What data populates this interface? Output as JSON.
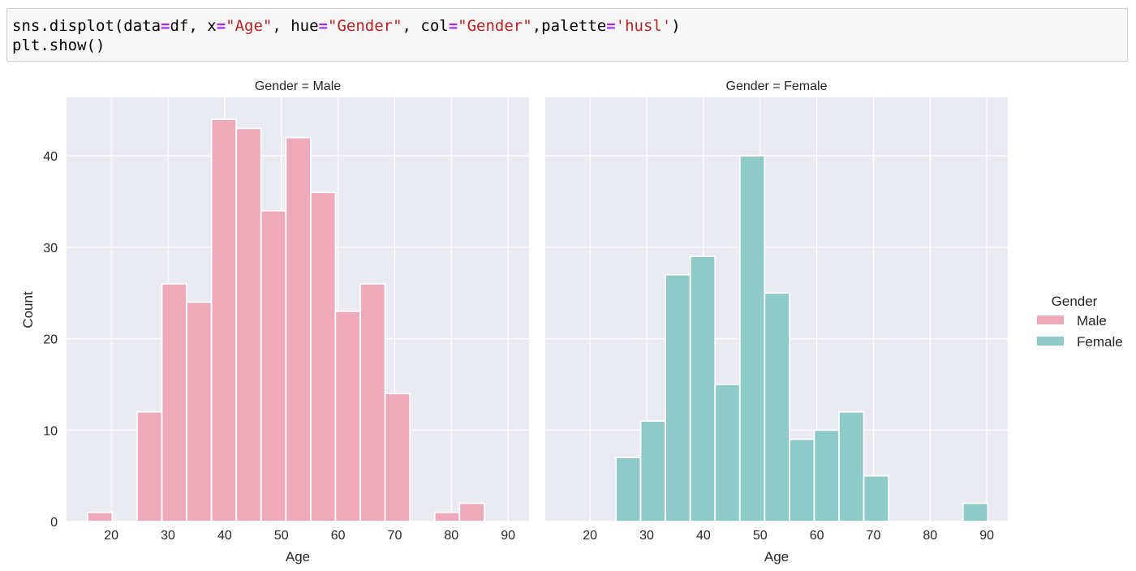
{
  "code": {
    "line1": [
      "sns.displot(data",
      "=",
      "df, x",
      "=",
      "\"Age\"",
      ", hue",
      "=",
      "\"Gender\"",
      ", col",
      "=",
      "\"Gender\"",
      ",palette",
      "=",
      "'husl'",
      ")"
    ],
    "line2": "plt.show()"
  },
  "chart_data": {
    "type": "bar",
    "subtype": "histogram-facets",
    "bin_edges_start": 15.8,
    "bin_width": 4.375,
    "xlim": [
      12.1,
      93.7
    ],
    "ylim": [
      0,
      46.4
    ],
    "xticks": [
      20,
      30,
      40,
      50,
      60,
      70,
      80,
      90
    ],
    "yticks": [
      0,
      10,
      20,
      30,
      40
    ],
    "xlabel": "Age",
    "ylabel": "Count",
    "grid": true,
    "facets": [
      {
        "title": "Gender = Male",
        "name": "Male",
        "color": "#eeaabb",
        "values": [
          1,
          0,
          12,
          26,
          24,
          44,
          43,
          34,
          42,
          36,
          23,
          26,
          14,
          0,
          1,
          2,
          0
        ]
      },
      {
        "title": "Gender = Female",
        "name": "Female",
        "color": "#8ecac8",
        "values": [
          0,
          0,
          7,
          11,
          27,
          29,
          15,
          40,
          25,
          9,
          10,
          12,
          5,
          0,
          0,
          0,
          2
        ]
      }
    ],
    "legend": {
      "title": "Gender",
      "entries": [
        "Male",
        "Female"
      ],
      "placement": "right"
    }
  }
}
